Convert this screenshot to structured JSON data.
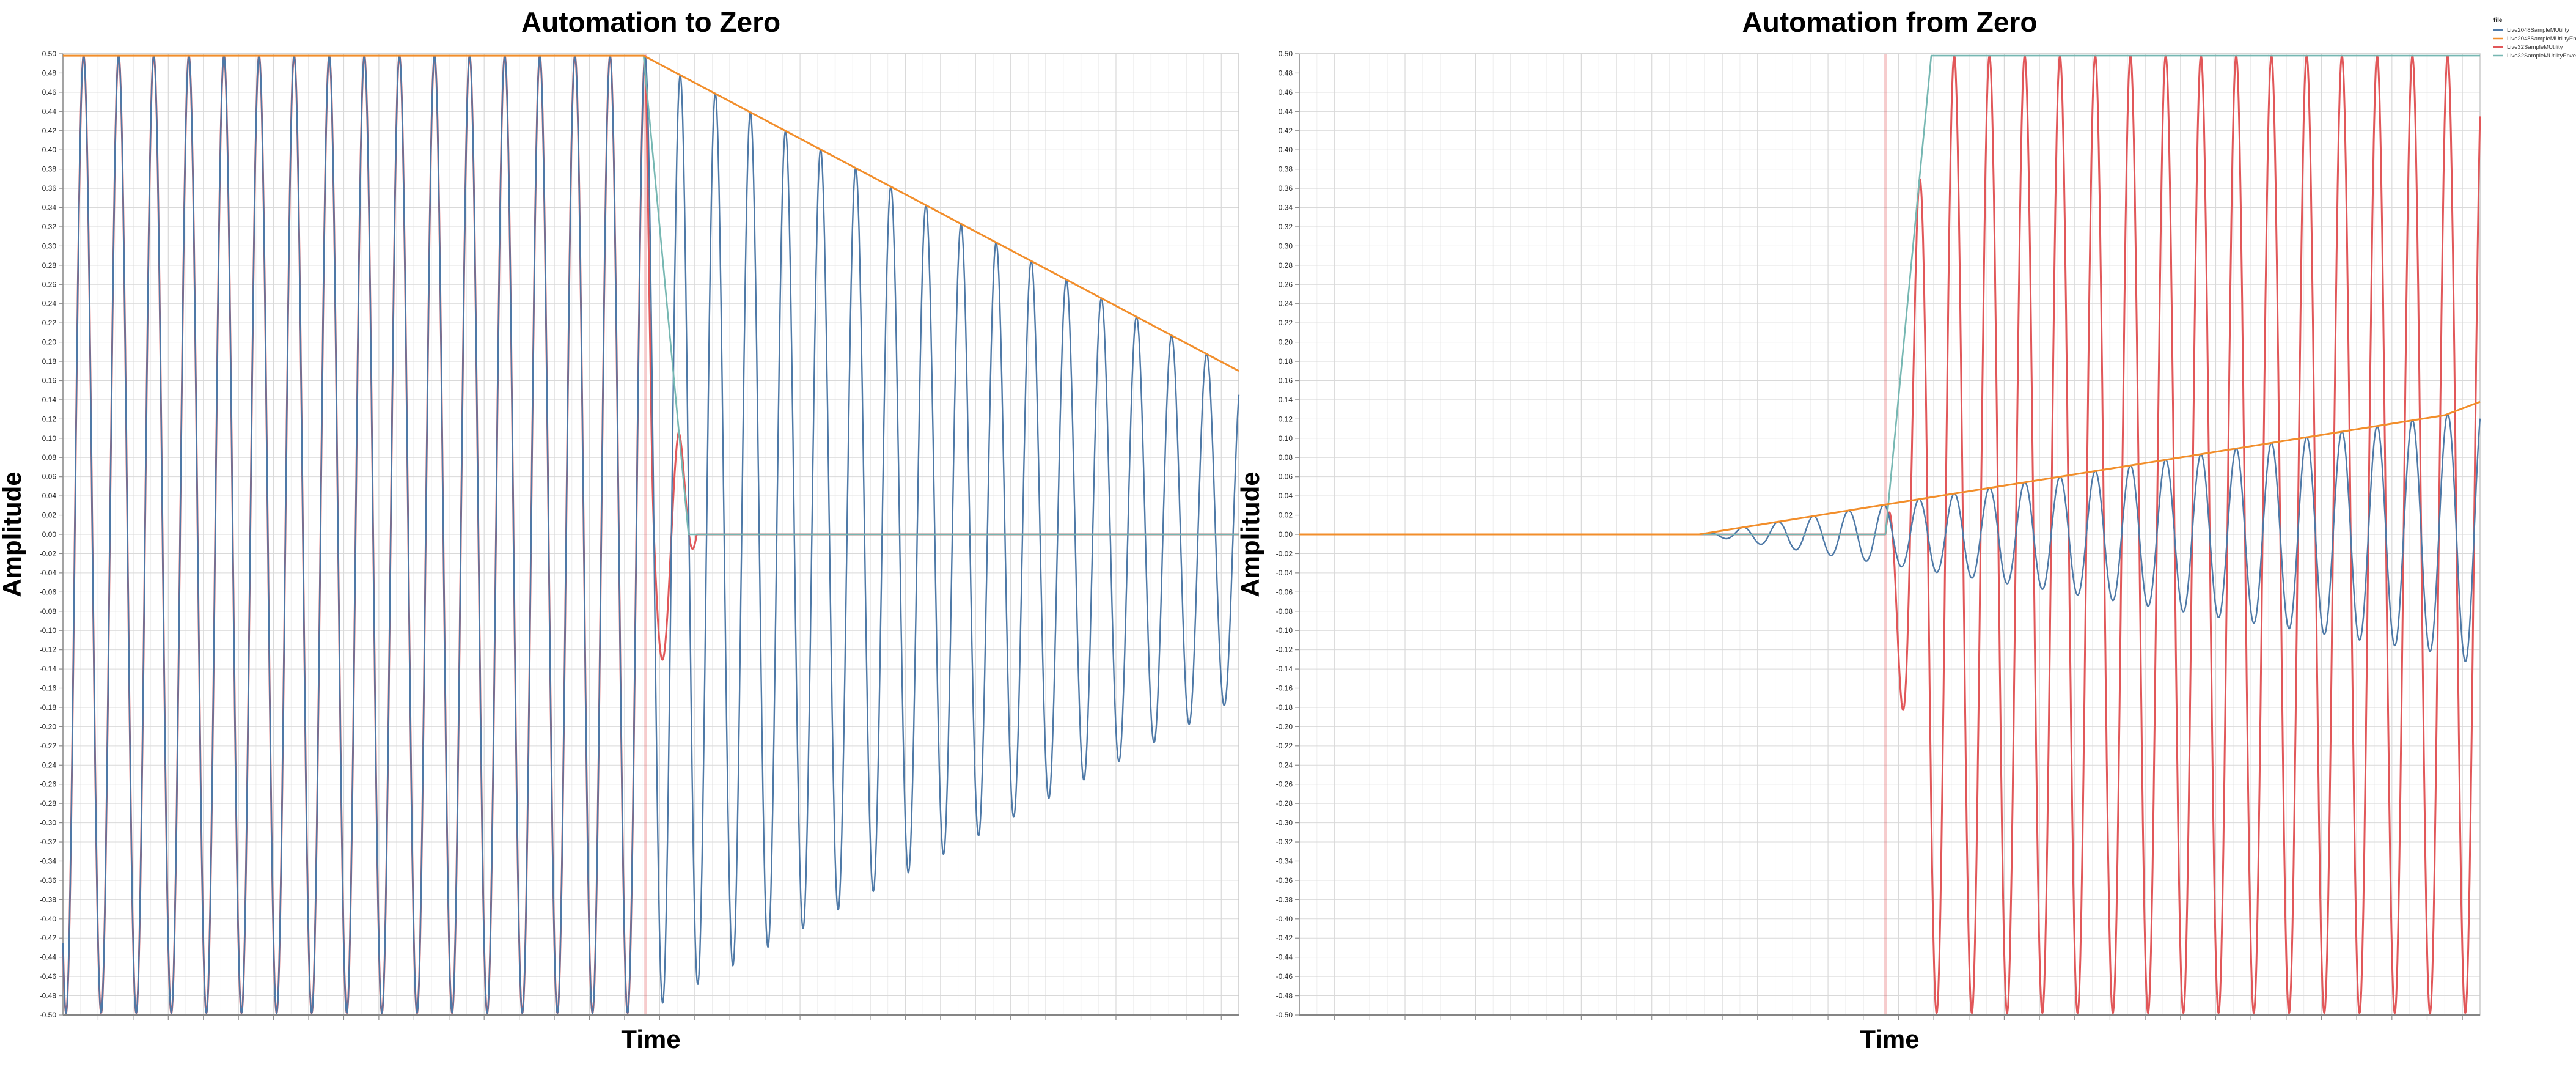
{
  "page": {
    "background": "#ffffff"
  },
  "chart_data": [
    {
      "type": "line",
      "title": "Automation to Zero",
      "xlabel": "Time",
      "ylabel": "Amplitude",
      "ylim": [
        -0.5,
        0.5
      ],
      "ytick_step": 0.02,
      "xtick_labels": "none",
      "grid": true,
      "wave_cycles": 33.5,
      "description": "Sine waves at full scale 0.498 until automation point t=0.494; 32-sample-buffer version (red) drops to zero almost instantly while 2048-sample-buffer version (blue) decays slowly following its envelope.",
      "series": [
        {
          "name": "Live32SampleMUtility",
          "color": "#e15759",
          "kind": "wave",
          "width": 3,
          "phase": -0.337,
          "amplitude_envelope": [
            [
              0,
              0.498
            ],
            [
              0.4954,
              0.498
            ],
            [
              0.503,
              0.14
            ],
            [
              0.5234,
              0.112
            ],
            [
              0.539,
              0
            ],
            [
              1,
              0
            ]
          ],
          "jump_discontinuity_t": 0.4954
        },
        {
          "name": "Live2048SampleMUtility",
          "color": "#4e79a7",
          "kind": "wave",
          "width": 2.4,
          "phase": -0.337,
          "amplitude_envelope": [
            [
              0,
              0.498
            ],
            [
              0.4938,
              0.498
            ],
            [
              1,
              0.17
            ]
          ]
        },
        {
          "name": "Live32SampleMUtilityEnvelope",
          "color": "#76b7b2",
          "kind": "envelope",
          "width": 2.6,
          "points": [
            [
              0,
              0.498
            ],
            [
              0.4938,
              0.498
            ],
            [
              0.532,
              0
            ],
            [
              1,
              0
            ]
          ]
        },
        {
          "name": "Live2048SampleMUtilityEnvelope",
          "color": "#f28e2b",
          "kind": "envelope",
          "width": 3,
          "points": [
            [
              0,
              0.498
            ],
            [
              0.4938,
              0.498
            ],
            [
              1,
              0.17
            ]
          ]
        }
      ]
    },
    {
      "type": "line",
      "title": "Automation from Zero",
      "xlabel": "Time",
      "ylabel": "Amplitude",
      "ylim": [
        -0.5,
        0.5
      ],
      "ytick_step": 0.02,
      "xtick_labels": "none",
      "grid": true,
      "wave_cycles": 33.5,
      "description": "Gain automated up from zero: 2048-sample-buffer version (blue) grows slowly along its envelope (orange, reaching ~0.138); 32-sample-buffer version (red) jumps to full scale 0.498 almost instantly at t=0.496 with its envelope (teal).",
      "series": [
        {
          "name": "Live32SampleMUtility",
          "color": "#e15759",
          "kind": "wave",
          "width": 3,
          "phase": 0.669,
          "amplitude_envelope": [
            [
              0,
              0
            ],
            [
              0.4964,
              0
            ],
            [
              0.5352,
              0.498
            ],
            [
              1,
              0.498
            ]
          ],
          "jump_discontinuity_t": 0.4964
        },
        {
          "name": "Live2048SampleMUtility",
          "color": "#4e79a7",
          "kind": "wave",
          "width": 2.4,
          "phase": 0.669,
          "amplitude_envelope": [
            [
              0,
              0
            ],
            [
              0.3385,
              0
            ],
            [
              0.97,
              0.124
            ],
            [
              1,
              0.138
            ]
          ]
        },
        {
          "name": "Live32SampleMUtilityEnvelope",
          "color": "#76b7b2",
          "kind": "envelope",
          "width": 2.6,
          "points": [
            [
              0,
              0
            ],
            [
              0.4964,
              0
            ],
            [
              0.5352,
              0.498
            ],
            [
              1,
              0.498
            ]
          ]
        },
        {
          "name": "Live2048SampleMUtilityEnvelope",
          "color": "#f28e2b",
          "kind": "envelope",
          "width": 3,
          "points": [
            [
              0,
              0
            ],
            [
              0.3385,
              0
            ],
            [
              0.97,
              0.124
            ],
            [
              1,
              0.138
            ]
          ]
        }
      ],
      "legend": {
        "title": "file",
        "entries": [
          {
            "label": "Live2048SampleMUtility",
            "color": "#4e79a7"
          },
          {
            "label": "Live2048SampleMUtilityEnvelope",
            "color": "#f28e2b"
          },
          {
            "label": "Live32SampleMUtility",
            "color": "#e15759"
          },
          {
            "label": "Live32SampleMUtilityEnvelope",
            "color": "#76b7b2"
          }
        ]
      }
    }
  ],
  "style_colors": {
    "grid_major": "#d9d9d9",
    "grid_minor": "#eeeeee",
    "frame": "#c6c6c6",
    "axis": "#858585",
    "tick": "#8c8c8c",
    "discontinuity_line": "rgba(225,87,89,0.3)"
  }
}
